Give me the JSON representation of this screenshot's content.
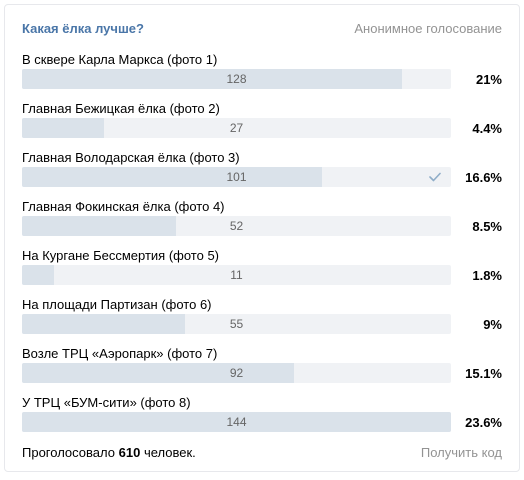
{
  "poll": {
    "title": "Какая ёлка лучше?",
    "type_label": "Анонимное голосование",
    "options": [
      {
        "label": "В сквере Карла Маркса (фото 1)",
        "votes": "128",
        "percent": "21%",
        "fill": 0.885,
        "voted": false
      },
      {
        "label": "Главная Бежицкая ёлка (фото 2)",
        "votes": "27",
        "percent": "4.4%",
        "fill": 0.19,
        "voted": false
      },
      {
        "label": "Главная Володарская ёлка (фото 3)",
        "votes": "101",
        "percent": "16.6%",
        "fill": 0.7,
        "voted": true
      },
      {
        "label": "Главная Фокинская ёлка (фото 4)",
        "votes": "52",
        "percent": "8.5%",
        "fill": 0.36,
        "voted": false
      },
      {
        "label": "На Кургане Бессмертия (фото 5)",
        "votes": "11",
        "percent": "1.8%",
        "fill": 0.075,
        "voted": false
      },
      {
        "label": "На площади Партизан (фото 6)",
        "votes": "55",
        "percent": "9%",
        "fill": 0.38,
        "voted": false
      },
      {
        "label": "Возле ТРЦ «Аэропарк» (фото 7)",
        "votes": "92",
        "percent": "15.1%",
        "fill": 0.635,
        "voted": false
      },
      {
        "label": "У ТРЦ «БУМ-сити» (фото 8)",
        "votes": "144",
        "percent": "23.6%",
        "fill": 1.0,
        "voted": false
      }
    ],
    "footer": {
      "voted_prefix": "Проголосовало",
      "voted_count": "610",
      "voted_suffix": "человек.",
      "get_code": "Получить код"
    },
    "colors": {
      "accent": "#4a76a8",
      "bar_track": "#f0f2f5",
      "bar_fill": "#dae2ea",
      "check": "#8fadc8"
    }
  }
}
